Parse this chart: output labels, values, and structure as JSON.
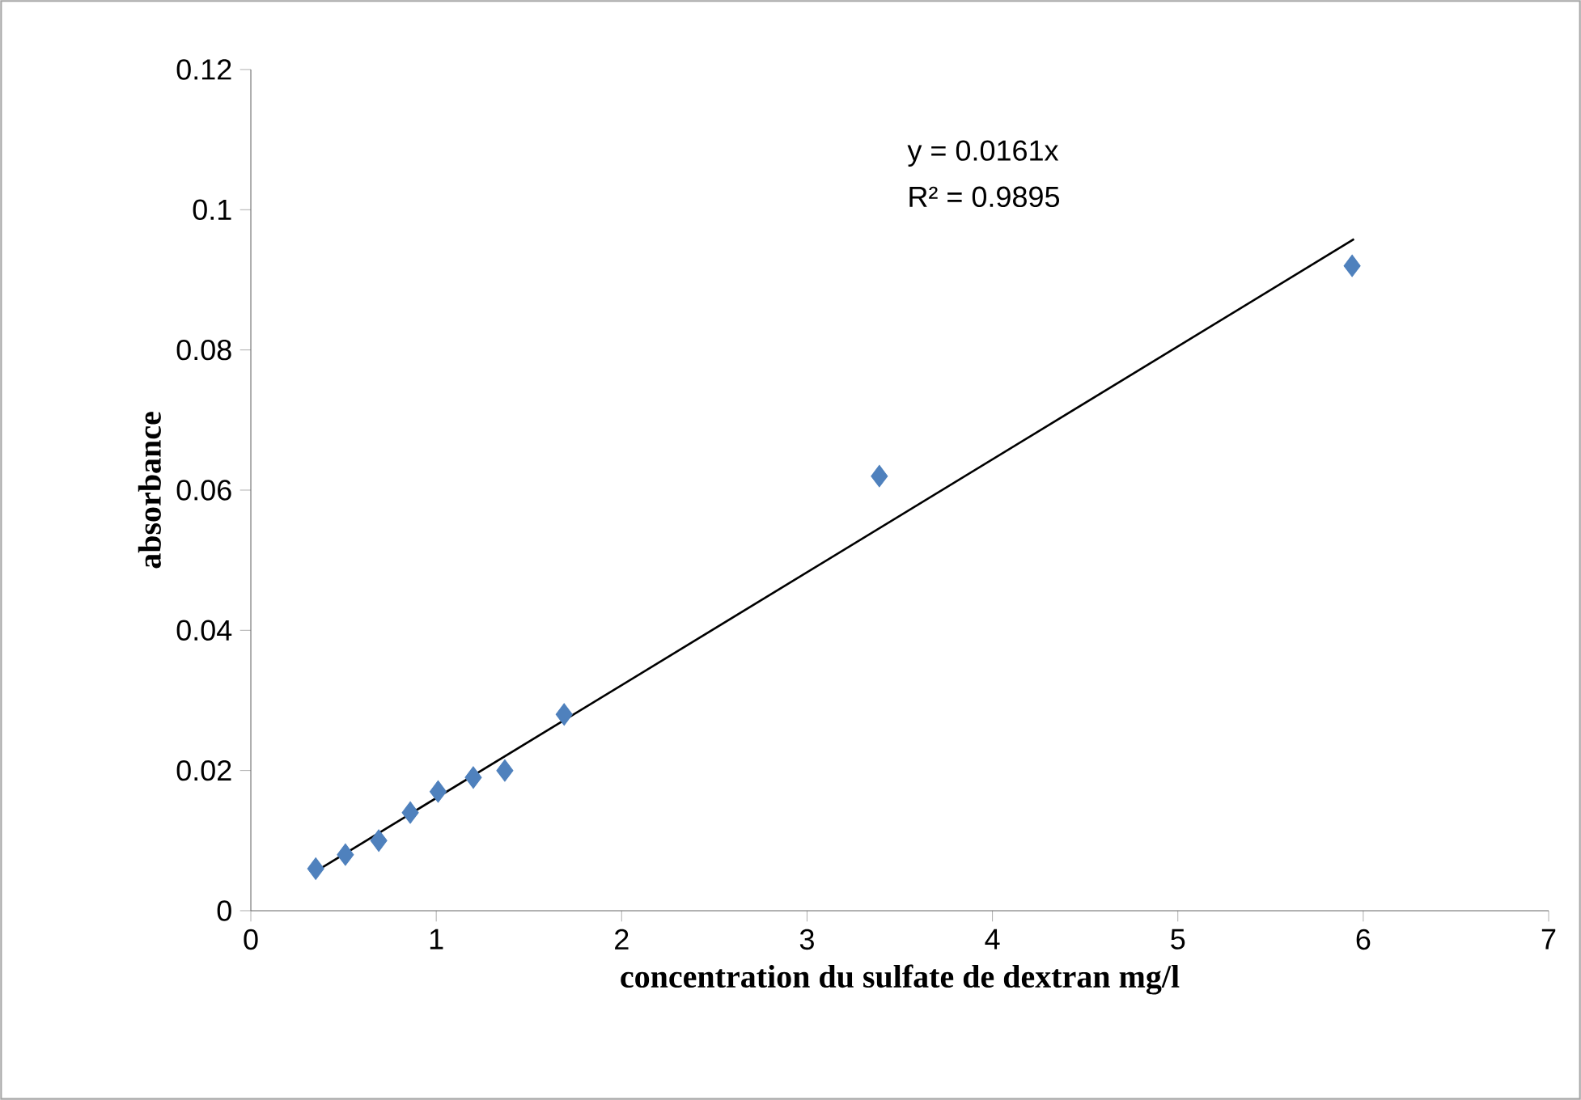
{
  "chart_data": {
    "type": "scatter",
    "xlabel": "concentration du sulfate de dextran mg/l",
    "ylabel": "absorbance",
    "xlim": [
      0,
      7
    ],
    "ylim": [
      0,
      0.12
    ],
    "xticks": [
      0,
      1,
      2,
      3,
      4,
      5,
      6,
      7
    ],
    "yticks": [
      0,
      0.02,
      0.04,
      0.06,
      0.08,
      0.1,
      0.12
    ],
    "series": [
      {
        "marker": "diamond",
        "color": "#4f81bd",
        "x": [
          0.35,
          0.51,
          0.69,
          0.86,
          1.01,
          1.2,
          1.37,
          1.69,
          3.39,
          5.94
        ],
        "values": [
          0.006,
          0.008,
          0.01,
          0.014,
          0.017,
          0.019,
          0.02,
          0.028,
          0.062,
          0.092
        ]
      },
      {
        "type": "line",
        "marker": "none",
        "line_style": "solid",
        "color": "#000000",
        "x": [
          0.35,
          5.95
        ],
        "values": [
          0.0056,
          0.0958
        ]
      }
    ],
    "annotations": [
      "y = 0.0161x",
      "R² = 0.9895"
    ]
  }
}
